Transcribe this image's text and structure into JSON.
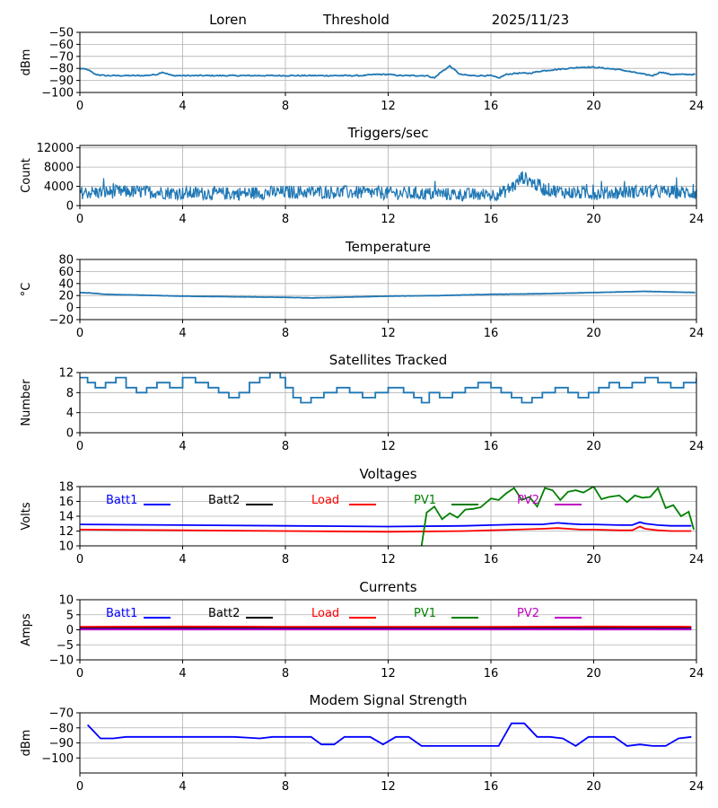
{
  "header": {
    "site": "Loren",
    "label": "Threshold",
    "date": "2025/11/23"
  },
  "colors": {
    "series": "#1f77b4",
    "batt1": "#0000ff",
    "batt2": "#000000",
    "load": "#ff0000",
    "pv1": "#008000",
    "pv2": "#c000c0",
    "modem": "#0000ff",
    "grid": "#b0b0b0"
  },
  "chart_data": [
    {
      "id": "threshold",
      "type": "line",
      "title": "",
      "ylabel": "dBm",
      "xlabel": "",
      "xlim": [
        0,
        24
      ],
      "ylim": [
        -100,
        -50
      ],
      "xticks": [
        0,
        4,
        8,
        12,
        16,
        20,
        24
      ],
      "yticks": [
        -100,
        -90,
        -80,
        -70,
        -60,
        -50
      ],
      "series": [
        {
          "name": "Threshold",
          "color": "#1f77b4",
          "x": [
            0,
            0.3,
            0.6,
            1,
            1.5,
            2,
            2.5,
            3,
            3.2,
            3.6,
            4,
            5,
            6,
            7,
            8,
            9,
            10,
            11,
            11.5,
            12,
            12.5,
            13,
            13.5,
            13.8,
            14,
            14.4,
            14.8,
            15.2,
            15.6,
            16,
            16.3,
            16.6,
            17,
            17.5,
            18,
            18.5,
            19,
            19.5,
            20,
            20.5,
            21,
            21.5,
            22,
            22.3,
            22.6,
            23,
            23.5,
            24
          ],
          "y": [
            -80,
            -81,
            -85,
            -86,
            -86,
            -86,
            -86,
            -85,
            -83,
            -86,
            -86,
            -86,
            -86,
            -86,
            -86,
            -86,
            -86,
            -86,
            -85,
            -85,
            -86,
            -86,
            -86,
            -88,
            -84,
            -78,
            -85,
            -86,
            -86,
            -86,
            -88,
            -85,
            -84,
            -84,
            -82,
            -81,
            -80,
            -79,
            -79,
            -80,
            -81,
            -83,
            -85,
            -86,
            -83,
            -85,
            -85,
            -85
          ]
        }
      ]
    },
    {
      "id": "triggers",
      "type": "line",
      "title": "Triggers/sec",
      "ylabel": "Count",
      "xlabel": "",
      "xlim": [
        0,
        24
      ],
      "ylim": [
        0,
        12500
      ],
      "xticks": [
        0,
        4,
        8,
        12,
        16,
        20,
        24
      ],
      "yticks": [
        0,
        4000,
        8000,
        12000
      ],
      "series": [
        {
          "name": "Triggers",
          "color": "#1f77b4",
          "x": [
            0,
            2,
            3,
            4,
            6,
            8,
            10,
            12,
            14,
            16,
            16.5,
            17,
            17.2,
            17.5,
            18,
            19,
            20,
            22,
            24
          ],
          "y": [
            2700,
            2900,
            2800,
            2600,
            2500,
            2800,
            2800,
            2600,
            2400,
            2200,
            2800,
            4500,
            6000,
            5200,
            3500,
            2700,
            2500,
            3000,
            2600
          ],
          "noise": 1400
        }
      ]
    },
    {
      "id": "temperature",
      "type": "line",
      "title": "Temperature",
      "ylabel": "°C",
      "xlabel": "",
      "xlim": [
        0,
        24
      ],
      "ylim": [
        -20,
        80
      ],
      "xticks": [
        0,
        4,
        8,
        12,
        16,
        20,
        24
      ],
      "yticks": [
        -20,
        0,
        20,
        40,
        60,
        80
      ],
      "series": [
        {
          "name": "Temperature",
          "color": "#1f77b4",
          "x": [
            0,
            0.5,
            1,
            2,
            3,
            4,
            6,
            8,
            9,
            10,
            12,
            14,
            16,
            18,
            20,
            21,
            22,
            23,
            24
          ],
          "y": [
            25,
            24,
            22,
            21,
            20,
            19,
            18,
            17,
            16,
            17,
            19,
            20,
            22,
            23,
            25,
            26,
            27,
            26,
            25
          ]
        }
      ]
    },
    {
      "id": "satellites",
      "type": "line",
      "title": "Satellites Tracked",
      "ylabel": "Number",
      "xlabel": "",
      "xlim": [
        0,
        24
      ],
      "ylim": [
        0,
        12
      ],
      "xticks": [
        0,
        4,
        8,
        12,
        16,
        20,
        24
      ],
      "yticks": [
        0,
        4,
        8,
        12
      ],
      "series": [
        {
          "name": "Satellites",
          "color": "#1f77b4",
          "step": true,
          "x": [
            0,
            0.3,
            0.6,
            1,
            1.4,
            1.8,
            2.2,
            2.6,
            3,
            3.5,
            4,
            4.5,
            5,
            5.4,
            5.8,
            6.2,
            6.6,
            7,
            7.4,
            7.8,
            8,
            8.3,
            8.6,
            9,
            9.5,
            10,
            10.5,
            11,
            11.5,
            12,
            12.6,
            13,
            13.3,
            13.6,
            14,
            14.5,
            15,
            15.5,
            16,
            16.4,
            16.8,
            17.2,
            17.6,
            18,
            18.5,
            19,
            19.4,
            19.8,
            20.2,
            20.6,
            21,
            21.5,
            22,
            22.5,
            23,
            23.5,
            24
          ],
          "y": [
            11,
            10,
            9,
            10,
            11,
            9,
            8,
            9,
            10,
            9,
            11,
            10,
            9,
            8,
            7,
            8,
            10,
            11,
            12,
            11,
            9,
            7,
            6,
            7,
            8,
            9,
            8,
            7,
            8,
            9,
            8,
            7,
            6,
            8,
            7,
            8,
            9,
            10,
            9,
            8,
            7,
            6,
            7,
            8,
            9,
            8,
            7,
            8,
            9,
            10,
            9,
            10,
            11,
            10,
            9,
            10,
            11
          ]
        }
      ]
    },
    {
      "id": "voltages",
      "type": "line",
      "title": "Voltages",
      "ylabel": "Volts",
      "xlabel": "",
      "xlim": [
        0,
        24
      ],
      "ylim": [
        10,
        18
      ],
      "xticks": [
        0,
        4,
        8,
        12,
        16,
        20,
        24
      ],
      "yticks": [
        10,
        12,
        14,
        16,
        18
      ],
      "legend": [
        "Batt1",
        "Batt2",
        "Load",
        "PV1",
        "PV2"
      ],
      "series": [
        {
          "name": "Batt1",
          "color": "#0000ff",
          "x": [
            0,
            4,
            8,
            12,
            15,
            16,
            17,
            18,
            18.6,
            19,
            19.5,
            20,
            21,
            21.5,
            21.8,
            22,
            22.5,
            23,
            23.8
          ],
          "y": [
            12.9,
            12.8,
            12.7,
            12.6,
            12.7,
            12.8,
            12.9,
            12.9,
            13.1,
            13.0,
            12.9,
            12.9,
            12.8,
            12.8,
            13.2,
            13.0,
            12.8,
            12.7,
            12.7
          ]
        },
        {
          "name": "Batt2",
          "color": "#000000",
          "x": [],
          "y": []
        },
        {
          "name": "Load",
          "color": "#ff0000",
          "x": [
            0,
            4,
            8,
            12,
            15,
            16,
            17,
            18,
            18.6,
            19,
            19.5,
            20,
            21,
            21.5,
            21.8,
            22,
            22.5,
            23,
            23.8
          ],
          "y": [
            12.2,
            12.1,
            12.0,
            11.9,
            12.0,
            12.1,
            12.2,
            12.3,
            12.4,
            12.3,
            12.2,
            12.2,
            12.1,
            12.1,
            12.6,
            12.3,
            12.1,
            12.0,
            12.0
          ]
        },
        {
          "name": "PV1",
          "color": "#008000",
          "x": [
            13.3,
            13.5,
            13.8,
            14.1,
            14.4,
            14.7,
            15,
            15.3,
            15.6,
            16,
            16.3,
            16.6,
            16.9,
            17.2,
            17.5,
            17.8,
            18.1,
            18.4,
            18.7,
            19,
            19.3,
            19.6,
            20,
            20.3,
            20.6,
            21,
            21.3,
            21.6,
            21.9,
            22.2,
            22.5,
            22.8,
            23.1,
            23.4,
            23.7,
            23.9
          ],
          "y": [
            10,
            14.5,
            15.3,
            13.6,
            14.4,
            13.8,
            14.9,
            15.0,
            15.2,
            16.4,
            16.2,
            17.1,
            17.8,
            16.2,
            16.6,
            15.3,
            17.8,
            17.5,
            16.2,
            17.3,
            17.5,
            17.2,
            18,
            16.3,
            16.6,
            16.8,
            15.9,
            16.8,
            16.5,
            16.6,
            17.8,
            15.1,
            15.5,
            14.0,
            14.6,
            12.2
          ]
        },
        {
          "name": "PV2",
          "color": "#c000c0",
          "x": [],
          "y": []
        }
      ]
    },
    {
      "id": "currents",
      "type": "line",
      "title": "Currents",
      "ylabel": "Amps",
      "xlabel": "",
      "xlim": [
        0,
        24
      ],
      "ylim": [
        -10,
        10
      ],
      "xticks": [
        0,
        4,
        8,
        12,
        16,
        20,
        24
      ],
      "yticks": [
        -10,
        -5,
        0,
        5,
        10
      ],
      "legend": [
        "Batt1",
        "Batt2",
        "Load",
        "PV1",
        "PV2"
      ],
      "series": [
        {
          "name": "Batt1",
          "color": "#0000ff",
          "x": [
            0,
            23.8
          ],
          "y": [
            0.3,
            0.3
          ]
        },
        {
          "name": "Batt2",
          "color": "#000000",
          "x": [
            0,
            23.8
          ],
          "y": [
            0.8,
            0.8
          ]
        },
        {
          "name": "Load",
          "color": "#ff0000",
          "x": [
            0,
            4,
            8,
            12,
            16,
            20,
            23.8
          ],
          "y": [
            1.0,
            1.1,
            1.0,
            1.0,
            1.0,
            1.1,
            1.0
          ]
        },
        {
          "name": "PV1",
          "color": "#008000",
          "x": [],
          "y": []
        },
        {
          "name": "PV2",
          "color": "#c000c0",
          "x": [
            0,
            23.8
          ],
          "y": [
            0.1,
            0.1
          ]
        }
      ]
    },
    {
      "id": "modem",
      "type": "line",
      "title": "Modem Signal Strength",
      "ylabel": "dBm",
      "xlabel": "",
      "xlim": [
        0,
        24
      ],
      "ylim": [
        -110,
        -70
      ],
      "xticks": [
        0,
        4,
        8,
        12,
        16,
        20,
        24
      ],
      "yticks": [
        -100,
        -90,
        -80,
        -70
      ],
      "series": [
        {
          "name": "Modem",
          "color": "#0000ff",
          "x": [
            0.3,
            0.8,
            1.3,
            1.8,
            2.5,
            3,
            4,
            5,
            6,
            6.5,
            7,
            7.5,
            8,
            8.5,
            9,
            9.4,
            9.9,
            10.3,
            10.8,
            11.3,
            11.8,
            12.3,
            12.8,
            13.3,
            13.8,
            14.3,
            15,
            16,
            16.3,
            16.8,
            17.3,
            17.8,
            18.3,
            18.8,
            19.3,
            19.8,
            20.3,
            20.8,
            21.3,
            21.8,
            22.3,
            22.8,
            23.3,
            23.8
          ],
          "y": [
            -78,
            -87,
            -87,
            -86,
            -86,
            -86,
            -86,
            -86,
            -86,
            -86.5,
            -87,
            -86,
            -86,
            -86,
            -86,
            -91,
            -91,
            -86,
            -86,
            -86,
            -91,
            -86,
            -86,
            -92,
            -92,
            -92,
            -92,
            -92,
            -92,
            -77,
            -77,
            -86,
            -86,
            -87,
            -92,
            -86,
            -86,
            -86,
            -92,
            -91,
            -92,
            -92,
            -87,
            -86
          ]
        }
      ]
    }
  ]
}
